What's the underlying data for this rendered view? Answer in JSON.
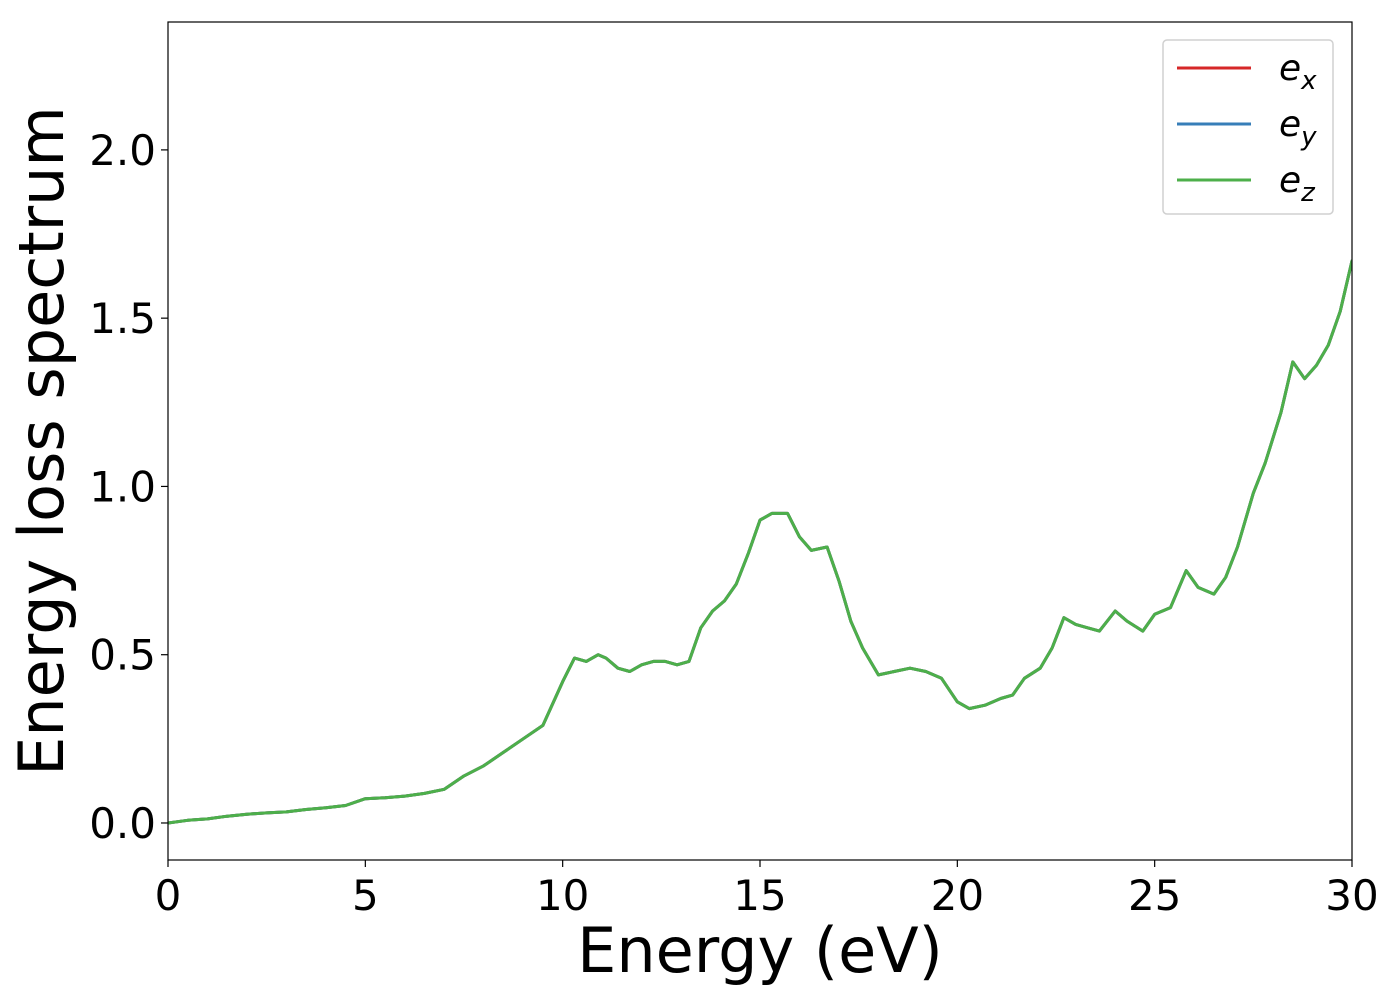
{
  "chart_data": {
    "type": "line",
    "title": "",
    "xlabel": "Energy (eV)",
    "ylabel": "Energy loss spectrum",
    "xlim": [
      0,
      30
    ],
    "ylim": [
      -0.11,
      2.38
    ],
    "xticks": [
      0,
      5,
      10,
      15,
      20,
      25,
      30
    ],
    "xtick_labels": [
      "0",
      "5",
      "10",
      "15",
      "20",
      "25",
      "30"
    ],
    "yticks": [
      0.0,
      0.5,
      1.0,
      1.5,
      2.0
    ],
    "ytick_labels": [
      "0.0",
      "0.5",
      "1.0",
      "1.5",
      "2.0"
    ],
    "grid": false,
    "legend": "top-right",
    "x": [
      0,
      0.5,
      1,
      1.5,
      2,
      2.5,
      3,
      3.5,
      4,
      4.5,
      5,
      5.5,
      6,
      6.5,
      7,
      7.5,
      8,
      8.5,
      9,
      9.5,
      10,
      10.3,
      10.6,
      10.9,
      11.1,
      11.4,
      11.7,
      12,
      12.3,
      12.6,
      12.9,
      13.2,
      13.5,
      13.8,
      14.1,
      14.4,
      14.7,
      15,
      15.3,
      15.7,
      16,
      16.3,
      16.7,
      17,
      17.3,
      17.6,
      18,
      18.4,
      18.8,
      19.2,
      19.6,
      20,
      20.3,
      20.7,
      21.1,
      21.4,
      21.7,
      22.1,
      22.4,
      22.7,
      23,
      23.3,
      23.6,
      24,
      24.3,
      24.7,
      25,
      25.4,
      25.8,
      26.1,
      26.5,
      26.8,
      27.1,
      27.5,
      27.8,
      28.2,
      28.5,
      28.8,
      29.1,
      29.4,
      29.7,
      30
    ],
    "series": [
      {
        "name": "e_x",
        "label_base": "e",
        "label_sub": "x",
        "color": "#d62728",
        "values": [
          0.0,
          0.008,
          0.012,
          0.02,
          0.026,
          0.03,
          0.033,
          0.04,
          0.045,
          0.052,
          0.072,
          0.075,
          0.08,
          0.088,
          0.1,
          0.14,
          0.17,
          0.21,
          0.25,
          0.29,
          0.42,
          0.49,
          0.48,
          0.5,
          0.49,
          0.46,
          0.45,
          0.47,
          0.48,
          0.48,
          0.47,
          0.48,
          0.58,
          0.63,
          0.66,
          0.71,
          0.8,
          0.9,
          0.92,
          0.92,
          0.85,
          0.81,
          0.82,
          0.72,
          0.6,
          0.52,
          0.44,
          0.45,
          0.46,
          0.45,
          0.43,
          0.36,
          0.34,
          0.35,
          0.37,
          0.38,
          0.43,
          0.46,
          0.52,
          0.61,
          0.59,
          0.58,
          0.57,
          0.63,
          0.6,
          0.57,
          0.62,
          0.64,
          0.75,
          0.7,
          0.68,
          0.73,
          0.82,
          0.98,
          1.07,
          1.22,
          1.37,
          1.32,
          1.36,
          1.42,
          1.52,
          1.67
        ]
      },
      {
        "name": "e_y",
        "label_base": "e",
        "label_sub": "y",
        "color": "#377eb8",
        "values": [
          0.0,
          0.008,
          0.012,
          0.02,
          0.026,
          0.03,
          0.033,
          0.04,
          0.045,
          0.052,
          0.072,
          0.075,
          0.08,
          0.088,
          0.1,
          0.14,
          0.17,
          0.21,
          0.25,
          0.29,
          0.42,
          0.49,
          0.48,
          0.5,
          0.49,
          0.46,
          0.45,
          0.47,
          0.48,
          0.48,
          0.47,
          0.48,
          0.58,
          0.63,
          0.66,
          0.71,
          0.8,
          0.9,
          0.92,
          0.92,
          0.85,
          0.81,
          0.82,
          0.72,
          0.6,
          0.52,
          0.44,
          0.45,
          0.46,
          0.45,
          0.43,
          0.36,
          0.34,
          0.35,
          0.37,
          0.38,
          0.43,
          0.46,
          0.52,
          0.61,
          0.59,
          0.58,
          0.57,
          0.63,
          0.6,
          0.57,
          0.62,
          0.64,
          0.75,
          0.7,
          0.68,
          0.73,
          0.82,
          0.98,
          1.07,
          1.22,
          1.37,
          1.32,
          1.36,
          1.42,
          1.52,
          1.67
        ]
      },
      {
        "name": "e_z",
        "label_base": "e",
        "label_sub": "z",
        "color": "#4daf4a",
        "values": [
          0.0,
          0.008,
          0.012,
          0.02,
          0.026,
          0.03,
          0.033,
          0.04,
          0.045,
          0.052,
          0.072,
          0.075,
          0.08,
          0.088,
          0.1,
          0.14,
          0.17,
          0.21,
          0.25,
          0.29,
          0.42,
          0.49,
          0.48,
          0.5,
          0.49,
          0.46,
          0.45,
          0.47,
          0.48,
          0.48,
          0.47,
          0.48,
          0.58,
          0.63,
          0.66,
          0.71,
          0.8,
          0.9,
          0.92,
          0.92,
          0.85,
          0.81,
          0.82,
          0.72,
          0.6,
          0.52,
          0.44,
          0.45,
          0.46,
          0.45,
          0.43,
          0.36,
          0.34,
          0.35,
          0.37,
          0.38,
          0.43,
          0.46,
          0.52,
          0.61,
          0.59,
          0.58,
          0.57,
          0.63,
          0.6,
          0.57,
          0.62,
          0.64,
          0.75,
          0.7,
          0.68,
          0.73,
          0.82,
          0.98,
          1.07,
          1.22,
          1.37,
          1.32,
          1.36,
          1.42,
          1.52,
          1.67
        ]
      }
    ]
  }
}
